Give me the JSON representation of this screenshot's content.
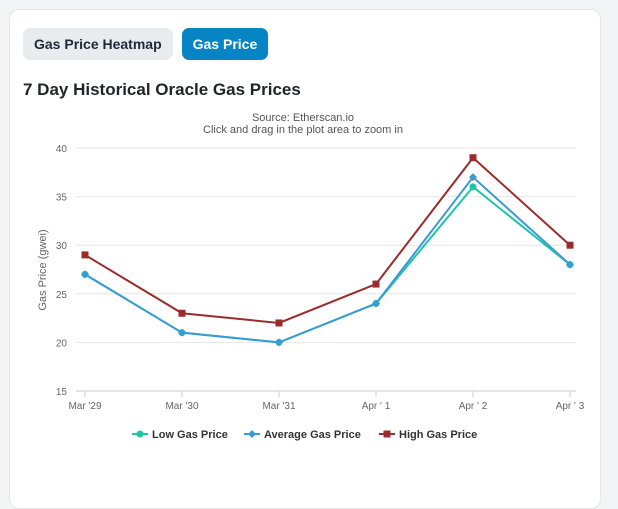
{
  "tabs": [
    {
      "label": "Gas Price Heatmap",
      "active": false
    },
    {
      "label": "Gas Price",
      "active": true
    }
  ],
  "section_title": "7 Day Historical Oracle Gas Prices",
  "chart_data": {
    "type": "line",
    "subtitle": "Source: Etherscan.io",
    "hint": "Click and drag in the plot area to zoom in",
    "ylabel": "Gas Price (gwei)",
    "categories": [
      "Mar '29",
      "Mar '30",
      "Mar '31",
      "Apr ' 1",
      "Apr ' 2",
      "Apr ' 3"
    ],
    "ylim": [
      15,
      40
    ],
    "yticks": [
      15,
      20,
      25,
      30,
      35,
      40
    ],
    "grid": true,
    "legend_position": "bottom",
    "series": [
      {
        "name": "Low Gas Price",
        "color": "#20c4a6",
        "marker": "circle",
        "values": [
          27,
          21,
          20,
          24,
          36,
          28
        ]
      },
      {
        "name": "Average Gas Price",
        "color": "#3a9bd5",
        "marker": "diamond",
        "values": [
          27,
          21,
          20,
          24,
          37,
          28
        ]
      },
      {
        "name": "High Gas Price",
        "color": "#9b2c2c",
        "marker": "square",
        "values": [
          29,
          23,
          22,
          26,
          39,
          30
        ]
      }
    ]
  }
}
